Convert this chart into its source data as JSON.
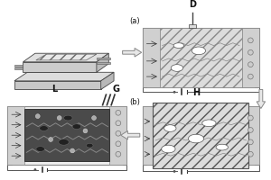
{
  "label_L": "L",
  "label_G": "G",
  "label_D": "D",
  "label_H": "H",
  "label_a": "(a)",
  "label_b": "(b)",
  "gray_light": "#d8d8d8",
  "gray_mid": "#b0b0b0",
  "gray_dark": "#555555",
  "gray_bg": "#e8e8e8",
  "white": "#ffffff",
  "black": "#222222"
}
